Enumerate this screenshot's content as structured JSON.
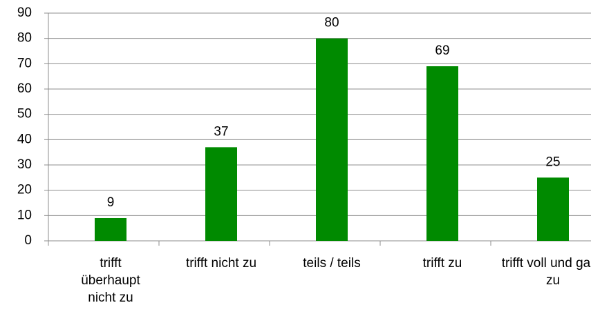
{
  "chart_data": {
    "type": "bar",
    "categories": [
      "trifft überhaupt nicht zu",
      "trifft nicht zu",
      "teils / teils",
      "trifft zu",
      "trifft voll und ganz zu"
    ],
    "values": [
      9,
      37,
      80,
      69,
      25
    ],
    "color": "#008a00",
    "ylim": [
      0,
      90
    ],
    "yticks": [
      0,
      10,
      20,
      30,
      40,
      50,
      60,
      70,
      80,
      90
    ],
    "grid": true
  }
}
